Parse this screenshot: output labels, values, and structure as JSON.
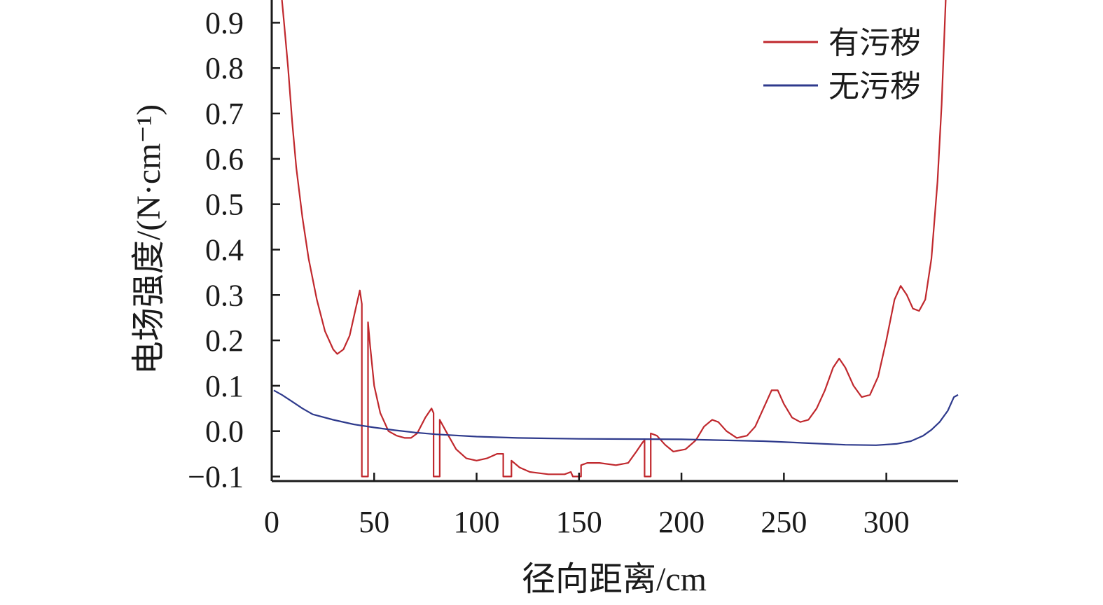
{
  "chart_data": {
    "type": "line",
    "title": "",
    "xlabel": "径向距离/cm",
    "ylabel": "电场强度/(N·cm⁻¹)",
    "xlim": [
      0,
      335
    ],
    "ylim": [
      -0.11,
      0.95
    ],
    "x_ticks": [
      0,
      50,
      100,
      150,
      200,
      250,
      300
    ],
    "y_ticks": [
      -0.1,
      0.0,
      0.1,
      0.2,
      0.3,
      0.4,
      0.5,
      0.6,
      0.7,
      0.8,
      0.9
    ],
    "x_tick_labels": [
      "0",
      "50",
      "100",
      "150",
      "200",
      "250",
      "300"
    ],
    "y_tick_labels": [
      "−0.1",
      "0.0",
      "0.1",
      "0.2",
      "0.3",
      "0.4",
      "0.5",
      "0.6",
      "0.7",
      "0.8",
      "0.9"
    ],
    "grid": false,
    "legend": "top-right",
    "series": [
      {
        "name": "有污秽",
        "color": "#c0282d",
        "points": [
          [
            5,
            0.95
          ],
          [
            6,
            0.9
          ],
          [
            8,
            0.8
          ],
          [
            10,
            0.68
          ],
          [
            12,
            0.58
          ],
          [
            15,
            0.47
          ],
          [
            18,
            0.38
          ],
          [
            22,
            0.29
          ],
          [
            26,
            0.22
          ],
          [
            30,
            0.18
          ],
          [
            32,
            0.17
          ],
          [
            35,
            0.18
          ],
          [
            38,
            0.21
          ],
          [
            41,
            0.27
          ],
          [
            43,
            0.31
          ],
          [
            44,
            0.28
          ],
          [
            44,
            -0.1
          ],
          [
            47,
            -0.1
          ],
          [
            47,
            0.24
          ],
          [
            48,
            0.19
          ],
          [
            50,
            0.1
          ],
          [
            53,
            0.04
          ],
          [
            57,
            0.0
          ],
          [
            61,
            -0.01
          ],
          [
            65,
            -0.015
          ],
          [
            68,
            -0.015
          ],
          [
            71,
            -0.005
          ],
          [
            75,
            0.03
          ],
          [
            78,
            0.05
          ],
          [
            79,
            0.04
          ],
          [
            79,
            -0.1
          ],
          [
            82,
            -0.1
          ],
          [
            82,
            0.025
          ],
          [
            85,
            0.0
          ],
          [
            90,
            -0.04
          ],
          [
            95,
            -0.06
          ],
          [
            100,
            -0.065
          ],
          [
            105,
            -0.06
          ],
          [
            110,
            -0.05
          ],
          [
            113,
            -0.05
          ],
          [
            113,
            -0.1
          ],
          [
            117,
            -0.1
          ],
          [
            117,
            -0.065
          ],
          [
            121,
            -0.08
          ],
          [
            126,
            -0.09
          ],
          [
            135,
            -0.095
          ],
          [
            143,
            -0.095
          ],
          [
            146,
            -0.09
          ],
          [
            147,
            -0.1
          ],
          [
            151,
            -0.1
          ],
          [
            151,
            -0.075
          ],
          [
            154,
            -0.07
          ],
          [
            160,
            -0.07
          ],
          [
            168,
            -0.075
          ],
          [
            174,
            -0.07
          ],
          [
            178,
            -0.045
          ],
          [
            181,
            -0.025
          ],
          [
            182,
            -0.02
          ],
          [
            182,
            -0.1
          ],
          [
            185,
            -0.1
          ],
          [
            185,
            -0.005
          ],
          [
            188,
            -0.01
          ],
          [
            192,
            -0.03
          ],
          [
            196,
            -0.045
          ],
          [
            202,
            -0.04
          ],
          [
            207,
            -0.02
          ],
          [
            211,
            0.01
          ],
          [
            215,
            0.025
          ],
          [
            218,
            0.02
          ],
          [
            222,
            0.0
          ],
          [
            227,
            -0.015
          ],
          [
            232,
            -0.01
          ],
          [
            236,
            0.01
          ],
          [
            240,
            0.05
          ],
          [
            244,
            0.09
          ],
          [
            247,
            0.09
          ],
          [
            250,
            0.06
          ],
          [
            254,
            0.03
          ],
          [
            258,
            0.02
          ],
          [
            262,
            0.025
          ],
          [
            266,
            0.05
          ],
          [
            270,
            0.09
          ],
          [
            274,
            0.14
          ],
          [
            277,
            0.16
          ],
          [
            280,
            0.14
          ],
          [
            284,
            0.1
          ],
          [
            288,
            0.075
          ],
          [
            292,
            0.08
          ],
          [
            296,
            0.12
          ],
          [
            300,
            0.2
          ],
          [
            304,
            0.29
          ],
          [
            307,
            0.32
          ],
          [
            310,
            0.3
          ],
          [
            313,
            0.27
          ],
          [
            316,
            0.265
          ],
          [
            319,
            0.29
          ],
          [
            322,
            0.38
          ],
          [
            325,
            0.55
          ],
          [
            327,
            0.72
          ],
          [
            329,
            0.95
          ]
        ]
      },
      {
        "name": "无污秽",
        "color": "#2e3a8c",
        "points": [
          [
            1,
            0.09
          ],
          [
            5,
            0.08
          ],
          [
            10,
            0.065
          ],
          [
            15,
            0.05
          ],
          [
            20,
            0.037
          ],
          [
            30,
            0.025
          ],
          [
            40,
            0.015
          ],
          [
            50,
            0.008
          ],
          [
            60,
            0.002
          ],
          [
            70,
            -0.003
          ],
          [
            80,
            -0.007
          ],
          [
            100,
            -0.012
          ],
          [
            120,
            -0.015
          ],
          [
            150,
            -0.017
          ],
          [
            200,
            -0.018
          ],
          [
            240,
            -0.022
          ],
          [
            260,
            -0.026
          ],
          [
            280,
            -0.03
          ],
          [
            295,
            -0.031
          ],
          [
            305,
            -0.028
          ],
          [
            312,
            -0.022
          ],
          [
            318,
            -0.01
          ],
          [
            322,
            0.003
          ],
          [
            326,
            0.02
          ],
          [
            330,
            0.045
          ],
          [
            333,
            0.075
          ],
          [
            335,
            0.08
          ]
        ]
      }
    ]
  }
}
